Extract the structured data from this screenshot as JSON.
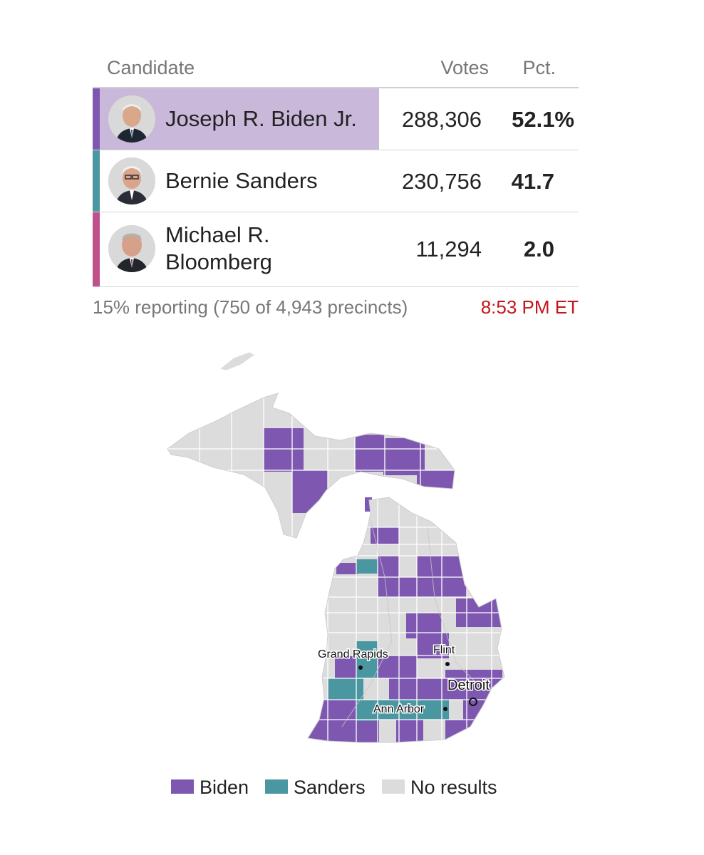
{
  "table": {
    "headers": {
      "candidate": "Candidate",
      "votes": "Votes",
      "pct": "Pct."
    },
    "rows": [
      {
        "name": "Joseph R. Biden Jr.",
        "votes": "288,306",
        "pct": "52.1%",
        "color": "#7e57b0",
        "leading": true
      },
      {
        "name": "Bernie Sanders",
        "votes": "230,756",
        "pct": "41.7",
        "color": "#4a97a1",
        "leading": false
      },
      {
        "name": "Michael R. Bloomberg",
        "votes": "11,294",
        "pct": "2.0",
        "color": "#c0508a",
        "leading": false
      }
    ],
    "lead_highlight": "#c9b8d9"
  },
  "status": {
    "reporting": "15% reporting (750 of 4,943 precincts)",
    "time": "8:53 PM ET"
  },
  "map": {
    "cities": [
      {
        "name": "Grand Rapids",
        "kind": "dot"
      },
      {
        "name": "Flint",
        "kind": "dot"
      },
      {
        "name": "Detroit",
        "kind": "circle"
      },
      {
        "name": "Ann Arbor",
        "kind": "dot"
      }
    ],
    "colors": {
      "biden": "#7e57b0",
      "sanders": "#4a97a1",
      "none": "#dcdcdc"
    }
  },
  "legend": [
    {
      "label": "Biden",
      "color": "#7e57b0"
    },
    {
      "label": "Sanders",
      "color": "#4a97a1"
    },
    {
      "label": "No results",
      "color": "#dcdcdc"
    }
  ]
}
